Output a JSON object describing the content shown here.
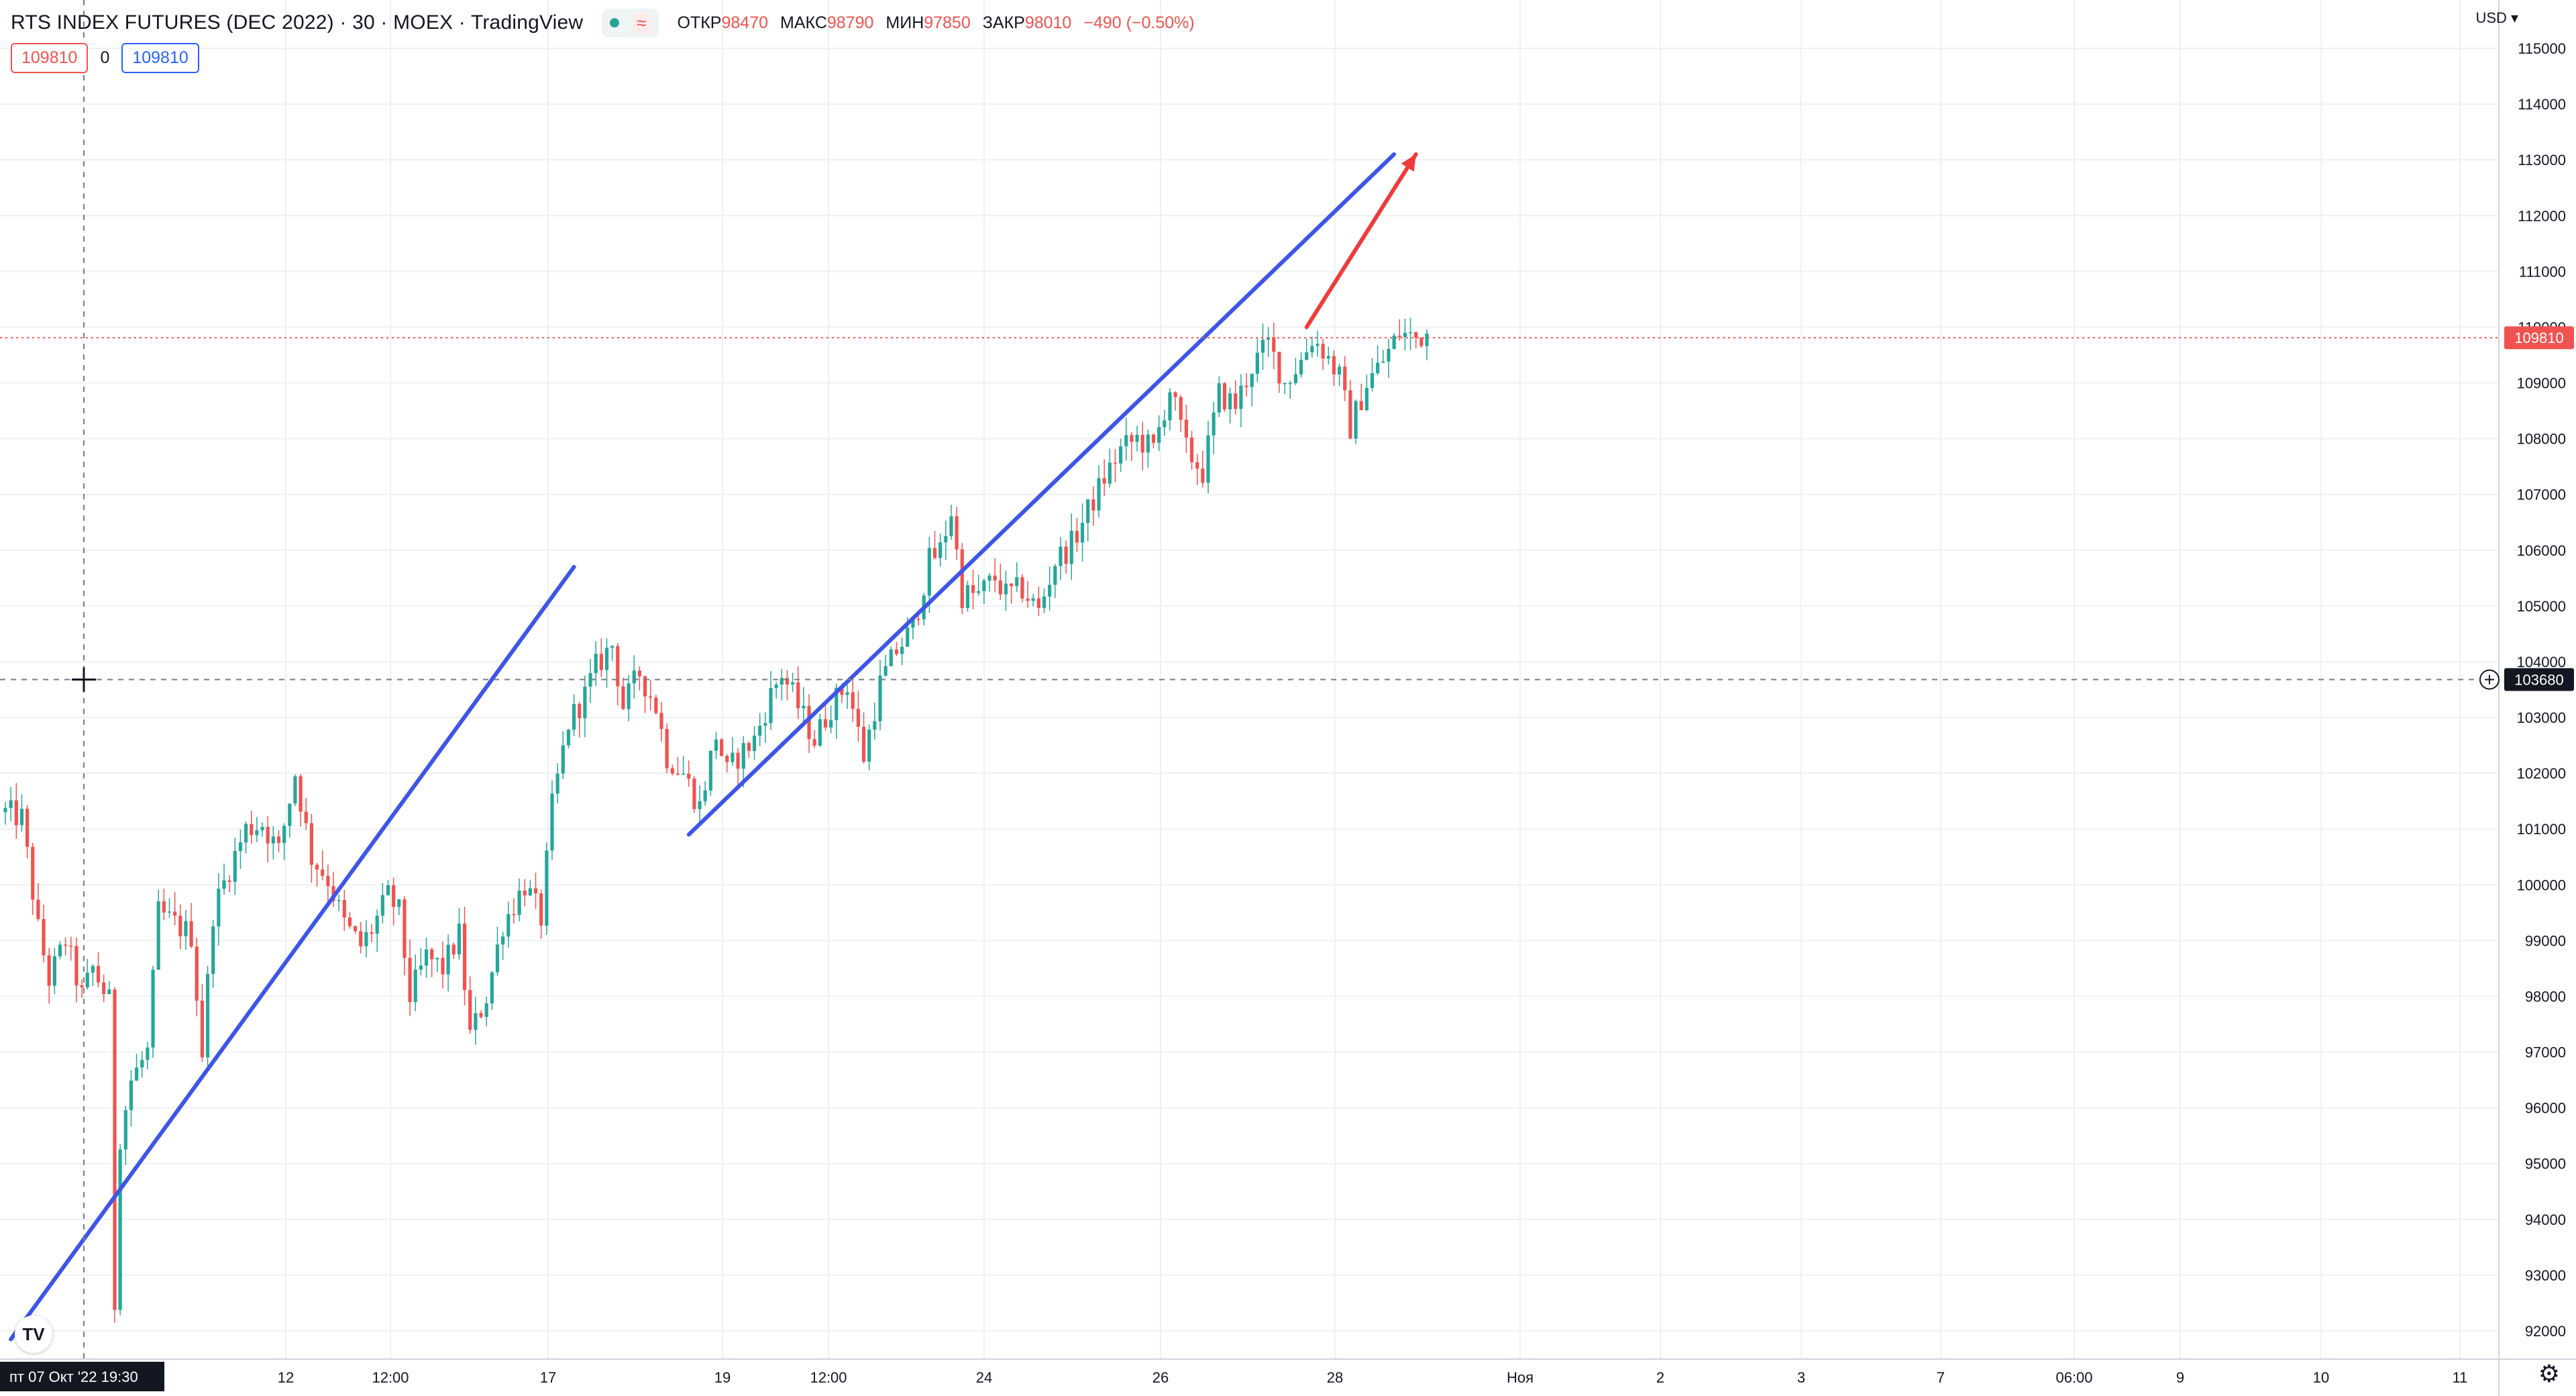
{
  "header": {
    "title": "RTS INDEX FUTURES (DEC 2022) · 30 · MOEX · TradingView",
    "approx_icon": "≈",
    "ohlc": [
      {
        "label": "ОТКР",
        "value": "98470"
      },
      {
        "label": "МАКС",
        "value": "98790"
      },
      {
        "label": "МИН",
        "value": "97850"
      },
      {
        "label": "ЗАКР",
        "value": "98010"
      }
    ],
    "change": "−490 (−0.50%)"
  },
  "indicator_values": {
    "first": "109810",
    "zero": "0",
    "second": "109810"
  },
  "currency": "USD",
  "price_axis": {
    "labels": [
      "115000",
      "114000",
      "113000",
      "112000",
      "111000",
      "110000",
      "109000",
      "108000",
      "107000",
      "106000",
      "105000",
      "104000",
      "103000",
      "102000",
      "101000",
      "100000",
      "99000",
      "98000",
      "97000",
      "96000",
      "95000",
      "94000",
      "93000",
      "92000"
    ],
    "current_price_label": "109810",
    "crosshair_price_label": "103680"
  },
  "time_axis": {
    "labels": [
      "12",
      "12:00",
      "17",
      "19",
      "12:00",
      "24",
      "26",
      "28",
      "Ноя",
      "2",
      "3",
      "7",
      "06:00",
      "9",
      "10",
      "11"
    ],
    "crosshair_label": "пт 07 Окт '22   19:30"
  },
  "colors": {
    "up": "#26a69a",
    "down": "#ef5350",
    "trendline": "#3d55e8",
    "arrow": "#ef3b3b",
    "grid": "#eef0f3"
  },
  "chart_data": {
    "type": "candlestick",
    "title": "RTS INDEX FUTURES (DEC 2022) · 30 · MOEX",
    "ylim": [
      91500,
      115800
    ],
    "grid": true,
    "current_price": 109810,
    "crosshair_price": 103680,
    "price_path": [
      [
        0,
        101300
      ],
      [
        3,
        101200
      ],
      [
        6,
        99200
      ],
      [
        8,
        98300
      ],
      [
        11,
        99000
      ],
      [
        14,
        98000
      ],
      [
        16,
        98500
      ],
      [
        19,
        97900
      ],
      [
        20,
        92500
      ],
      [
        21,
        95500
      ],
      [
        23,
        96500
      ],
      [
        26,
        97000
      ],
      [
        28,
        99500
      ],
      [
        31,
        99300
      ],
      [
        34,
        99100
      ],
      [
        36,
        97000
      ],
      [
        38,
        99500
      ],
      [
        41,
        100300
      ],
      [
        44,
        101000
      ],
      [
        47,
        101100
      ],
      [
        50,
        100600
      ],
      [
        53,
        102000
      ],
      [
        56,
        100500
      ],
      [
        59,
        100100
      ],
      [
        62,
        99300
      ],
      [
        65,
        98900
      ],
      [
        67,
        99200
      ],
      [
        70,
        99800
      ],
      [
        72,
        99500
      ],
      [
        74,
        98000
      ],
      [
        77,
        98700
      ],
      [
        80,
        98500
      ],
      [
        83,
        99100
      ],
      [
        85,
        97300
      ],
      [
        88,
        98000
      ],
      [
        91,
        99300
      ],
      [
        95,
        100000
      ],
      [
        98,
        99400
      ],
      [
        100,
        101400
      ],
      [
        103,
        102900
      ],
      [
        106,
        103400
      ],
      [
        108,
        103900
      ],
      [
        111,
        104300
      ],
      [
        113,
        103200
      ],
      [
        116,
        103800
      ],
      [
        119,
        103200
      ],
      [
        121,
        102300
      ],
      [
        124,
        102000
      ],
      [
        127,
        101400
      ],
      [
        130,
        102700
      ],
      [
        132,
        102000
      ],
      [
        134,
        102300
      ],
      [
        137,
        102600
      ],
      [
        140,
        103400
      ],
      [
        142,
        103800
      ],
      [
        145,
        103200
      ],
      [
        148,
        102600
      ],
      [
        151,
        103200
      ],
      [
        154,
        103600
      ],
      [
        157,
        102300
      ],
      [
        160,
        103600
      ],
      [
        163,
        104200
      ],
      [
        166,
        104600
      ],
      [
        169,
        105800
      ],
      [
        171,
        106000
      ],
      [
        173,
        106700
      ],
      [
        175,
        105200
      ],
      [
        178,
        105200
      ],
      [
        181,
        105500
      ],
      [
        183,
        105200
      ],
      [
        186,
        105300
      ],
      [
        189,
        104900
      ],
      [
        192,
        105800
      ],
      [
        195,
        106100
      ],
      [
        198,
        106700
      ],
      [
        201,
        107300
      ],
      [
        204,
        107800
      ],
      [
        207,
        108000
      ],
      [
        210,
        107800
      ],
      [
        213,
        108900
      ],
      [
        216,
        107800
      ],
      [
        219,
        107400
      ],
      [
        222,
        108800
      ],
      [
        225,
        108600
      ],
      [
        228,
        109300
      ],
      [
        231,
        109700
      ],
      [
        234,
        109000
      ],
      [
        237,
        109400
      ],
      [
        239,
        109800
      ],
      [
        241,
        109600
      ],
      [
        244,
        109100
      ],
      [
        246,
        108200
      ],
      [
        249,
        109000
      ],
      [
        252,
        109400
      ],
      [
        255,
        109900
      ],
      [
        258,
        109800
      ],
      [
        260,
        109900
      ]
    ],
    "trend_lines": [
      {
        "from": [
          1,
          91850
        ],
        "to": [
          104,
          105700
        ]
      },
      {
        "from": [
          125,
          100900
        ],
        "to": [
          254,
          113100
        ]
      }
    ],
    "forecast_arrow": {
      "from": [
        238,
        110000
      ],
      "to": [
        258,
        113100
      ]
    }
  }
}
